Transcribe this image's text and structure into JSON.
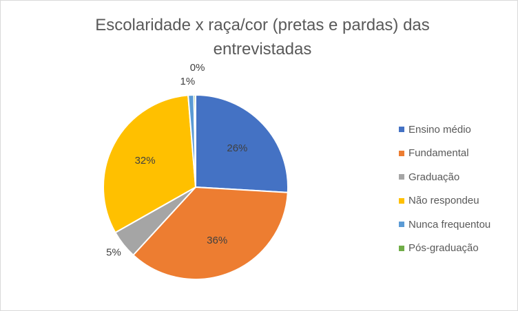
{
  "chart_data": {
    "type": "pie",
    "title": "Escolaridade x raça/cor (pretas e pardas) das entrevistadas",
    "categories": [
      "Ensino médio",
      "Fundamental",
      "Graduação",
      "Não respondeu",
      "Nunca frequentou",
      "Pós-graduação"
    ],
    "values": [
      26,
      36,
      5,
      32,
      1,
      0.3
    ],
    "data_labels": [
      "26%",
      "36%",
      "5%",
      "32%",
      "1%",
      "0%"
    ],
    "colors": [
      "#4472C4",
      "#ED7D31",
      "#A5A5A5",
      "#FFC000",
      "#5B9BD5",
      "#70AD47"
    ],
    "legend_position": "right"
  }
}
